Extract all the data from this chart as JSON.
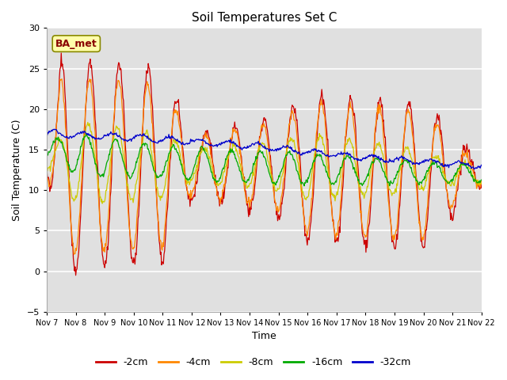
{
  "title": "Soil Temperatures Set C",
  "xlabel": "Time",
  "ylabel": "Soil Temperature (C)",
  "ylim": [
    -5,
    30
  ],
  "yticks": [
    -5,
    0,
    5,
    10,
    15,
    20,
    25,
    30
  ],
  "legend_label": "BA_met",
  "series_labels": [
    "-2cm",
    "-4cm",
    "-8cm",
    "-16cm",
    "-32cm"
  ],
  "series_colors": [
    "#cc0000",
    "#ff8800",
    "#cccc00",
    "#00aa00",
    "#0000cc"
  ],
  "background_color": "#e0e0e0",
  "grid_color": "#ffffff",
  "start_day": 7,
  "end_day": 22,
  "n_days": 15,
  "points_per_day": 48
}
